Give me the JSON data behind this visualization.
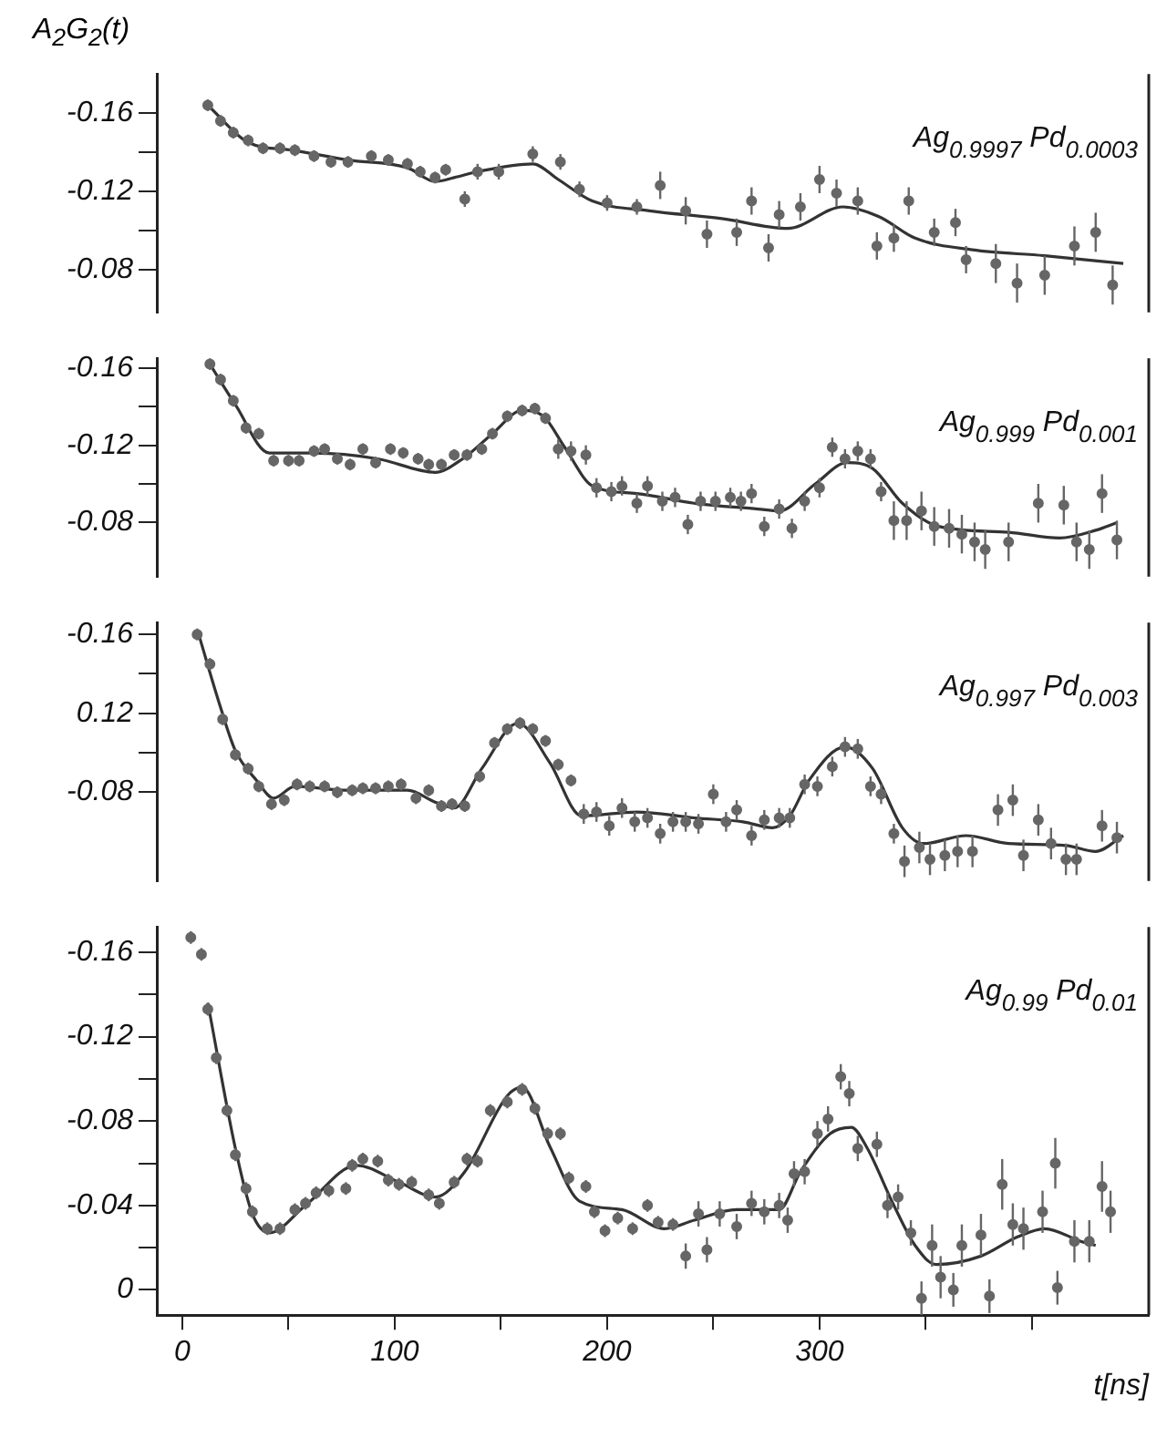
{
  "chart_data": [
    {
      "type": "scatter",
      "ylabel": "A$_{2}$G$_{2}$(t)",
      "annotations": [
        "Ag$_{0.9997}$ Pd$_{0.0003}$"
      ],
      "xlim": [
        -12,
        455
      ],
      "ylim": [
        -0.058,
        -0.18
      ],
      "yticks": [
        -0.16,
        {
          "value": -0.14,
          "label": null
        },
        -0.12,
        {
          "value": -0.1,
          "label": null
        },
        -0.08
      ],
      "tick_labels": "y",
      "grid": false,
      "legend": false,
      "series": [
        {
          "type": "scatter",
          "marker": "circle",
          "color": "#666666",
          "x": [
            12,
            18,
            24,
            31,
            38,
            46,
            53,
            62,
            70,
            78,
            89,
            97,
            106,
            112,
            119,
            124,
            133,
            139,
            149,
            165,
            178,
            187,
            200,
            214,
            225,
            237,
            247,
            261,
            268,
            276,
            281,
            291,
            300,
            308,
            318,
            327,
            335,
            342,
            354,
            364,
            369,
            383,
            393,
            406,
            420,
            430,
            438
          ],
          "values": [
            -0.164,
            -0.156,
            -0.15,
            -0.146,
            -0.142,
            -0.142,
            -0.141,
            -0.138,
            -0.135,
            -0.135,
            -0.138,
            -0.136,
            -0.134,
            -0.13,
            -0.127,
            -0.131,
            -0.116,
            -0.13,
            -0.13,
            -0.139,
            -0.135,
            -0.121,
            -0.114,
            -0.112,
            -0.123,
            -0.11,
            -0.098,
            -0.099,
            -0.115,
            -0.091,
            -0.108,
            -0.112,
            -0.126,
            -0.119,
            -0.115,
            -0.092,
            -0.096,
            -0.115,
            -0.099,
            -0.104,
            -0.085,
            -0.083,
            -0.073,
            -0.077,
            -0.092,
            -0.099,
            -0.072
          ],
          "errors": [
            0.003,
            0.003,
            0.003,
            0.003,
            0.003,
            0.003,
            0.003,
            0.003,
            0.003,
            0.003,
            0.003,
            0.003,
            0.003,
            0.003,
            0.003,
            0.003,
            0.004,
            0.004,
            0.004,
            0.004,
            0.004,
            0.004,
            0.004,
            0.004,
            0.007,
            0.007,
            0.007,
            0.007,
            0.007,
            0.007,
            0.007,
            0.007,
            0.007,
            0.007,
            0.007,
            0.007,
            0.007,
            0.007,
            0.007,
            0.007,
            0.007,
            0.01,
            0.01,
            0.01,
            0.01,
            0.01,
            0.01
          ]
        },
        {
          "type": "line",
          "marker": "none",
          "color": "#333333",
          "x": [
            12,
            31,
            52,
            78,
            106,
            119,
            128,
            139,
            165,
            177,
            193,
            220,
            254,
            285,
            311,
            328,
            345,
            372,
            406,
            443
          ],
          "values": [
            -0.164,
            -0.145,
            -0.141,
            -0.136,
            -0.132,
            -0.125,
            -0.127,
            -0.13,
            -0.134,
            -0.126,
            -0.115,
            -0.11,
            -0.106,
            -0.101,
            -0.112,
            -0.107,
            -0.096,
            -0.09,
            -0.087,
            -0.083
          ]
        }
      ]
    },
    {
      "type": "scatter",
      "annotations": [
        "Ag$_{0.999}$ Pd$_{0.001}$"
      ],
      "xlim": [
        -12,
        455
      ],
      "ylim": [
        -0.052,
        -0.165
      ],
      "yticks": [
        -0.16,
        {
          "value": -0.14,
          "label": null
        },
        -0.12,
        {
          "value": -0.1,
          "label": null
        },
        -0.08
      ],
      "tick_labels": "y",
      "grid": false,
      "legend": false,
      "series": [
        {
          "type": "scatter",
          "marker": "circle",
          "color": "#666666",
          "x": [
            13,
            18,
            24,
            30,
            36,
            43,
            50,
            55,
            62,
            67,
            73,
            79,
            85,
            91,
            98,
            104,
            111,
            116,
            122,
            128,
            134,
            141,
            146,
            153,
            160,
            166,
            171,
            177,
            183,
            190,
            195,
            202,
            207,
            214,
            219,
            226,
            232,
            238,
            244,
            251,
            258,
            263,
            268,
            274,
            281,
            287,
            293,
            300,
            306,
            312,
            318,
            324,
            329,
            335,
            341,
            348,
            354,
            361,
            367,
            373,
            378,
            389,
            403,
            415,
            421,
            427,
            433,
            440
          ],
          "values": [
            -0.162,
            -0.154,
            -0.143,
            -0.129,
            -0.126,
            -0.112,
            -0.112,
            -0.112,
            -0.117,
            -0.118,
            -0.113,
            -0.11,
            -0.118,
            -0.111,
            -0.118,
            -0.116,
            -0.113,
            -0.11,
            -0.11,
            -0.115,
            -0.115,
            -0.118,
            -0.126,
            -0.135,
            -0.138,
            -0.139,
            -0.134,
            -0.118,
            -0.117,
            -0.115,
            -0.098,
            -0.096,
            -0.099,
            -0.09,
            -0.099,
            -0.091,
            -0.093,
            -0.079,
            -0.091,
            -0.091,
            -0.093,
            -0.091,
            -0.095,
            -0.078,
            -0.087,
            -0.077,
            -0.091,
            -0.098,
            -0.119,
            -0.113,
            -0.117,
            -0.113,
            -0.096,
            -0.081,
            -0.081,
            -0.086,
            -0.078,
            -0.077,
            -0.074,
            -0.07,
            -0.066,
            -0.07,
            -0.09,
            -0.089,
            -0.07,
            -0.066,
            -0.095,
            -0.071
          ],
          "errors": [
            0.003,
            0.003,
            0.003,
            0.003,
            0.003,
            0.003,
            0.003,
            0.003,
            0.003,
            0.003,
            0.003,
            0.003,
            0.003,
            0.003,
            0.003,
            0.003,
            0.003,
            0.003,
            0.003,
            0.003,
            0.003,
            0.003,
            0.003,
            0.003,
            0.003,
            0.003,
            0.003,
            0.005,
            0.005,
            0.005,
            0.005,
            0.005,
            0.005,
            0.005,
            0.005,
            0.005,
            0.005,
            0.005,
            0.005,
            0.005,
            0.005,
            0.005,
            0.005,
            0.005,
            0.005,
            0.005,
            0.005,
            0.005,
            0.005,
            0.005,
            0.005,
            0.005,
            0.005,
            0.01,
            0.01,
            0.01,
            0.01,
            0.01,
            0.01,
            0.01,
            0.01,
            0.01,
            0.01,
            0.01,
            0.01,
            0.01,
            0.01,
            0.01
          ]
        },
        {
          "type": "line",
          "marker": "none",
          "color": "#333333",
          "x": [
            13,
            25,
            41,
            62,
            92,
            119,
            132,
            146,
            160,
            170,
            180,
            193,
            214,
            241,
            271,
            281,
            298,
            313,
            325,
            339,
            356,
            389,
            413,
            430,
            440
          ],
          "values": [
            -0.162,
            -0.141,
            -0.116,
            -0.116,
            -0.113,
            -0.106,
            -0.113,
            -0.126,
            -0.138,
            -0.135,
            -0.119,
            -0.099,
            -0.095,
            -0.09,
            -0.087,
            -0.086,
            -0.1,
            -0.111,
            -0.108,
            -0.09,
            -0.078,
            -0.075,
            -0.072,
            -0.076,
            -0.08
          ]
        }
      ]
    },
    {
      "type": "scatter",
      "annotations": [
        "Ag$_{0.997}$ Pd$_{0.003}$"
      ],
      "xlim": [
        -12,
        455
      ],
      "ylim": [
        -0.035,
        -0.166
      ],
      "yticks": [
        -0.16,
        {
          "value": -0.14,
          "label": null
        },
        {
          "value": -0.12,
          "label": "0.12"
        },
        {
          "value": -0.1,
          "label": null
        },
        -0.08
      ],
      "tick_labels": "y",
      "grid": false,
      "legend": false,
      "series": [
        {
          "type": "scatter",
          "marker": "circle",
          "color": "#666666",
          "x": [
            7,
            13,
            19,
            25,
            31,
            36,
            42,
            48,
            54,
            60,
            67,
            73,
            80,
            85,
            91,
            97,
            103,
            110,
            116,
            122,
            127,
            133,
            140,
            147,
            153,
            159,
            165,
            171,
            177,
            183,
            189,
            195,
            201,
            207,
            213,
            219,
            225,
            231,
            237,
            243,
            250,
            256,
            261,
            268,
            274,
            281,
            286,
            293,
            299,
            306,
            312,
            318,
            324,
            329,
            335,
            340,
            347,
            352,
            359,
            365,
            372,
            384,
            391,
            396,
            403,
            409,
            416,
            421,
            433,
            440
          ],
          "values": [
            -0.16,
            -0.145,
            -0.117,
            -0.099,
            -0.092,
            -0.083,
            -0.074,
            -0.076,
            -0.084,
            -0.083,
            -0.083,
            -0.08,
            -0.081,
            -0.082,
            -0.082,
            -0.083,
            -0.084,
            -0.077,
            -0.081,
            -0.073,
            -0.074,
            -0.073,
            -0.088,
            -0.105,
            -0.112,
            -0.115,
            -0.112,
            -0.106,
            -0.094,
            -0.086,
            -0.069,
            -0.07,
            -0.063,
            -0.072,
            -0.065,
            -0.067,
            -0.059,
            -0.065,
            -0.065,
            -0.064,
            -0.079,
            -0.065,
            -0.071,
            -0.058,
            -0.066,
            -0.067,
            -0.067,
            -0.084,
            -0.083,
            -0.093,
            -0.103,
            -0.102,
            -0.083,
            -0.079,
            -0.059,
            -0.045,
            -0.052,
            -0.046,
            -0.048,
            -0.05,
            -0.05,
            -0.071,
            -0.076,
            -0.048,
            -0.066,
            -0.054,
            -0.046,
            -0.046,
            -0.063,
            -0.057
          ],
          "errors": [
            0.003,
            0.003,
            0.003,
            0.003,
            0.003,
            0.003,
            0.003,
            0.003,
            0.003,
            0.003,
            0.003,
            0.003,
            0.003,
            0.003,
            0.003,
            0.003,
            0.003,
            0.003,
            0.003,
            0.003,
            0.003,
            0.003,
            0.003,
            0.003,
            0.003,
            0.003,
            0.003,
            0.003,
            0.003,
            0.003,
            0.005,
            0.005,
            0.005,
            0.005,
            0.005,
            0.005,
            0.005,
            0.005,
            0.005,
            0.005,
            0.005,
            0.005,
            0.005,
            0.005,
            0.005,
            0.005,
            0.005,
            0.005,
            0.005,
            0.005,
            0.005,
            0.005,
            0.005,
            0.005,
            0.005,
            0.008,
            0.008,
            0.008,
            0.008,
            0.008,
            0.008,
            0.008,
            0.008,
            0.008,
            0.008,
            0.008,
            0.008,
            0.008,
            0.008,
            0.008
          ]
        },
        {
          "type": "line",
          "marker": "none",
          "color": "#333333",
          "x": [
            8,
            18,
            25,
            35,
            43,
            53,
            78,
            106,
            119,
            128,
            141,
            158,
            173,
            188,
            214,
            241,
            264,
            278,
            286,
            295,
            312,
            325,
            339,
            349,
            369,
            389,
            416,
            430,
            443
          ],
          "values": [
            -0.159,
            -0.123,
            -0.101,
            -0.086,
            -0.077,
            -0.083,
            -0.081,
            -0.081,
            -0.075,
            -0.072,
            -0.092,
            -0.115,
            -0.095,
            -0.068,
            -0.07,
            -0.067,
            -0.065,
            -0.062,
            -0.068,
            -0.086,
            -0.103,
            -0.092,
            -0.062,
            -0.054,
            -0.058,
            -0.054,
            -0.053,
            -0.05,
            -0.058
          ]
        }
      ]
    },
    {
      "type": "scatter",
      "xlabel": "t[ns]",
      "annotations": [
        "Ag$_{0.99}$ Pd$_{0.01}$"
      ],
      "xlim": [
        -12,
        455
      ],
      "xticks": [
        0,
        {
          "value": 50,
          "label": null
        },
        100,
        {
          "value": 150,
          "label": null
        },
        200,
        {
          "value": 250,
          "label": null
        },
        300,
        {
          "value": 350,
          "label": null
        },
        {
          "value": 400,
          "label": null
        }
      ],
      "ylim": [
        0.012,
        -0.172
      ],
      "yticks": [
        -0.16,
        {
          "value": -0.14,
          "label": null
        },
        -0.12,
        {
          "value": -0.1,
          "label": null
        },
        -0.08,
        {
          "value": -0.06,
          "label": null
        },
        -0.04,
        {
          "value": -0.02,
          "label": null
        },
        0
      ],
      "grid": false,
      "legend": false,
      "series": [
        {
          "type": "scatter",
          "marker": "circle",
          "color": "#666666",
          "x": [
            4,
            9,
            12,
            16,
            21,
            25,
            30,
            33,
            40,
            46,
            53,
            58,
            63,
            69,
            77,
            80,
            85,
            92,
            97,
            102,
            108,
            116,
            121,
            128,
            134,
            139,
            145,
            153,
            160,
            166,
            172,
            178,
            182,
            190,
            194,
            199,
            205,
            212,
            219,
            224,
            231,
            237,
            243,
            247,
            253,
            261,
            268,
            274,
            281,
            285,
            288,
            293,
            299,
            304,
            310,
            314,
            318,
            327,
            332,
            337,
            343,
            348,
            353,
            357,
            363,
            367,
            376,
            380,
            386,
            391,
            396,
            405,
            411,
            412,
            420,
            427,
            433,
            437
          ],
          "values": [
            -0.167,
            -0.159,
            -0.133,
            -0.11,
            -0.085,
            -0.064,
            -0.048,
            -0.037,
            -0.029,
            -0.029,
            -0.038,
            -0.041,
            -0.046,
            -0.047,
            -0.048,
            -0.059,
            -0.062,
            -0.061,
            -0.052,
            -0.05,
            -0.051,
            -0.045,
            -0.041,
            -0.051,
            -0.062,
            -0.061,
            -0.085,
            -0.089,
            -0.095,
            -0.086,
            -0.074,
            -0.074,
            -0.053,
            -0.049,
            -0.037,
            -0.028,
            -0.034,
            -0.029,
            -0.04,
            -0.032,
            -0.031,
            -0.016,
            -0.036,
            -0.019,
            -0.036,
            -0.03,
            -0.041,
            -0.037,
            -0.04,
            -0.033,
            -0.055,
            -0.056,
            -0.074,
            -0.081,
            -0.101,
            -0.093,
            -0.067,
            -0.069,
            -0.04,
            -0.044,
            -0.027,
            0.004,
            -0.021,
            -0.006,
            0,
            -0.021,
            -0.026,
            0.003,
            -0.05,
            -0.031,
            -0.029,
            -0.037,
            -0.06,
            -0.001,
            -0.023,
            -0.023,
            -0.049,
            -0.037
          ],
          "errors": [
            0.003,
            0.003,
            0.003,
            0.003,
            0.003,
            0.003,
            0.003,
            0.003,
            0.003,
            0.003,
            0.003,
            0.003,
            0.003,
            0.003,
            0.003,
            0.003,
            0.003,
            0.003,
            0.003,
            0.003,
            0.003,
            0.003,
            0.003,
            0.003,
            0.003,
            0.003,
            0.003,
            0.003,
            0.003,
            0.003,
            0.003,
            0.003,
            0.003,
            0.003,
            0.003,
            0.003,
            0.003,
            0.003,
            0.003,
            0.003,
            0.003,
            0.006,
            0.006,
            0.006,
            0.006,
            0.006,
            0.006,
            0.006,
            0.006,
            0.006,
            0.006,
            0.006,
            0.006,
            0.006,
            0.006,
            0.006,
            0.006,
            0.006,
            0.006,
            0.006,
            0.006,
            0.008,
            0.01,
            0.01,
            0.008,
            0.01,
            0.01,
            0.008,
            0.012,
            0.01,
            0.01,
            0.01,
            0.012,
            0.008,
            0.01,
            0.01,
            0.012,
            0.01
          ]
        },
        {
          "type": "line",
          "marker": "none",
          "color": "#333333",
          "x": [
            12,
            25,
            33,
            41,
            58,
            82,
            102,
            119,
            133,
            153,
            160,
            173,
            187,
            207,
            227,
            241,
            261,
            281,
            291,
            305,
            315,
            322,
            335,
            345,
            355,
            376,
            393,
            406,
            423,
            430
          ],
          "values": [
            -0.136,
            -0.067,
            -0.036,
            -0.027,
            -0.04,
            -0.059,
            -0.051,
            -0.044,
            -0.056,
            -0.092,
            -0.096,
            -0.068,
            -0.042,
            -0.038,
            -0.029,
            -0.033,
            -0.038,
            -0.038,
            -0.056,
            -0.074,
            -0.077,
            -0.068,
            -0.04,
            -0.021,
            -0.012,
            -0.016,
            -0.025,
            -0.029,
            -0.023,
            -0.021
          ]
        }
      ]
    }
  ]
}
